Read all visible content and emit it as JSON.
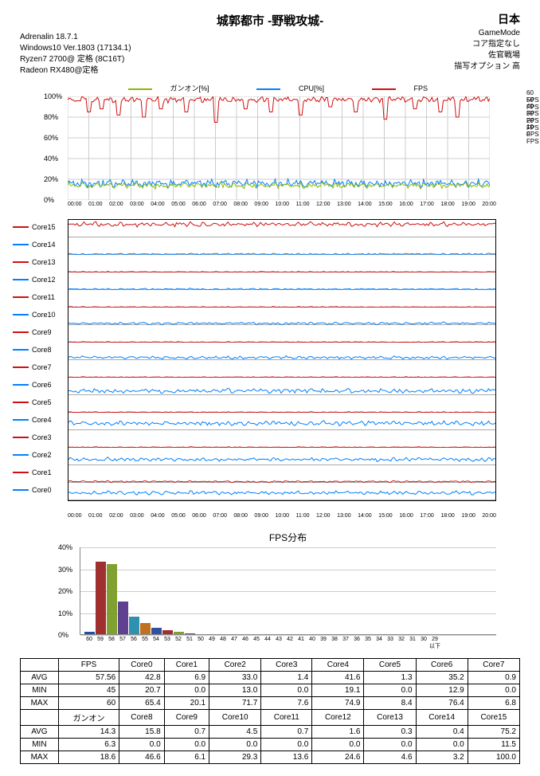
{
  "header": {
    "title": "城郭都市 -野戦攻城-",
    "region": "日本",
    "left_lines": [
      "Adrenalin  18.7.1",
      "Windows10  Ver.1803 (17134.1)",
      "        Ryzen7 2700@ 定格     (8C16T)",
      "Radeon RX480@定格"
    ],
    "right_lines": [
      "GameMode",
      "コア指定なし",
      "佐官戦場",
      "描写オプション 高"
    ]
  },
  "main_chart": {
    "legend": [
      {
        "label": "ガンオン[%]",
        "color": "#8ab800"
      },
      {
        "label": "CPU[%]",
        "color": "#0080ff"
      },
      {
        "label": "FPS",
        "color": "#d01010"
      }
    ],
    "y_left_ticks": [
      "100%",
      "80%",
      "60%",
      "40%",
      "20%",
      "0%"
    ],
    "y_right_ticks": [
      "60 FPS",
      "50 FPS",
      "40 FPS",
      "30 FPS",
      "20 FPS",
      "10 FPS",
      "0 FPS"
    ],
    "x_ticks": [
      "00:00",
      "01:00",
      "02:00",
      "03:00",
      "04:00",
      "05:00",
      "06:00",
      "07:00",
      "08:00",
      "09:00",
      "10:00",
      "11:00",
      "12:00",
      "13:00",
      "14:00",
      "15:00",
      "16:00",
      "17:00",
      "18:00",
      "19:00",
      "20:00"
    ],
    "height": 130,
    "border_color": "#000000",
    "grid_color": "#cccccc",
    "series": {
      "fps": {
        "color": "#d01010",
        "baseline": 97,
        "noise": 3,
        "dips": [
          [
            5,
            85
          ],
          [
            8,
            88
          ],
          [
            12,
            82
          ],
          [
            18,
            80
          ],
          [
            22,
            88
          ],
          [
            28,
            85
          ],
          [
            35,
            75
          ],
          [
            42,
            88
          ],
          [
            48,
            85
          ],
          [
            55,
            82
          ],
          [
            62,
            90
          ],
          [
            68,
            85
          ],
          [
            75,
            78
          ],
          [
            82,
            88
          ],
          [
            88,
            85
          ],
          [
            92,
            80
          ]
        ]
      },
      "cpu": {
        "color": "#0080ff",
        "baseline": 16,
        "noise": 4
      },
      "gunon": {
        "color": "#8ab800",
        "baseline": 14,
        "noise": 3
      }
    }
  },
  "cores": {
    "x_ticks": [
      "00:00",
      "01:00",
      "02:00",
      "03:00",
      "04:00",
      "05:00",
      "06:00",
      "07:00",
      "08:00",
      "09:00",
      "10:00",
      "11:00",
      "12:00",
      "13:00",
      "14:00",
      "15:00",
      "16:00",
      "17:00",
      "18:00",
      "19:00",
      "20:00"
    ],
    "list": [
      {
        "name": "Core15",
        "color": "#d01010",
        "baseline": 75,
        "noise": 15
      },
      {
        "name": "Core14",
        "color": "#0080ff",
        "baseline": 5,
        "noise": 5
      },
      {
        "name": "Core13",
        "color": "#d01010",
        "baseline": 3,
        "noise": 3
      },
      {
        "name": "Core12",
        "color": "#0080ff",
        "baseline": 5,
        "noise": 5
      },
      {
        "name": "Core11",
        "color": "#d01010",
        "baseline": 3,
        "noise": 3
      },
      {
        "name": "Core10",
        "color": "#0080ff",
        "baseline": 10,
        "noise": 8
      },
      {
        "name": "Core9",
        "color": "#d01010",
        "baseline": 3,
        "noise": 3
      },
      {
        "name": "Core8",
        "color": "#0080ff",
        "baseline": 15,
        "noise": 10
      },
      {
        "name": "Core7",
        "color": "#d01010",
        "baseline": 3,
        "noise": 3
      },
      {
        "name": "Core6",
        "color": "#0080ff",
        "baseline": 25,
        "noise": 15
      },
      {
        "name": "Core5",
        "color": "#d01010",
        "baseline": 3,
        "noise": 3
      },
      {
        "name": "Core4",
        "color": "#0080ff",
        "baseline": 40,
        "noise": 15
      },
      {
        "name": "Core3",
        "color": "#d01010",
        "baseline": 3,
        "noise": 3
      },
      {
        "name": "Core2",
        "color": "#0080ff",
        "baseline": 33,
        "noise": 12
      },
      {
        "name": "Core1",
        "color": "#d01010",
        "baseline": 7,
        "noise": 5
      },
      {
        "name": "Core0",
        "color": "#0080ff",
        "baseline": 43,
        "noise": 12
      }
    ]
  },
  "histogram": {
    "title": "FPS分布",
    "y_ticks": [
      "40%",
      "30%",
      "20%",
      "10%",
      "0%"
    ],
    "y_max": 40,
    "x_labels": [
      "60",
      "59",
      "58",
      "57",
      "56",
      "55",
      "54",
      "53",
      "52",
      "51",
      "50",
      "49",
      "48",
      "47",
      "46",
      "45",
      "44",
      "43",
      "42",
      "41",
      "40",
      "39",
      "38",
      "37",
      "36",
      "35",
      "34",
      "33",
      "32",
      "31",
      "30",
      "29以下"
    ],
    "bars": [
      {
        "v": 1,
        "c": "#2050a0"
      },
      {
        "v": 33,
        "c": "#a03030"
      },
      {
        "v": 32,
        "c": "#80a030"
      },
      {
        "v": 15,
        "c": "#604090"
      },
      {
        "v": 8,
        "c": "#3090b0"
      },
      {
        "v": 5,
        "c": "#c07020"
      },
      {
        "v": 3,
        "c": "#3050a0"
      },
      {
        "v": 2,
        "c": "#a03030"
      },
      {
        "v": 1,
        "c": "#80a030"
      },
      {
        "v": 0.5,
        "c": "#604090"
      }
    ]
  },
  "stats": {
    "headers1": [
      "",
      "FPS",
      "Core0",
      "Core1",
      "Core2",
      "Core3",
      "Core4",
      "Core5",
      "Core6",
      "Core7"
    ],
    "rows1": [
      [
        "AVG",
        "57.56",
        "42.8",
        "6.9",
        "33.0",
        "1.4",
        "41.6",
        "1.3",
        "35.2",
        "0.9"
      ],
      [
        "MIN",
        "45",
        "20.7",
        "0.0",
        "13.0",
        "0.0",
        "19.1",
        "0.0",
        "12.9",
        "0.0"
      ],
      [
        "MAX",
        "60",
        "65.4",
        "20.1",
        "71.7",
        "7.6",
        "74.9",
        "8.4",
        "76.4",
        "6.8"
      ]
    ],
    "headers2": [
      "",
      "ガンオン",
      "Core8",
      "Core9",
      "Core10",
      "Core11",
      "Core12",
      "Core13",
      "Core14",
      "Core15"
    ],
    "rows2": [
      [
        "AVG",
        "14.3",
        "15.8",
        "0.7",
        "4.5",
        "0.7",
        "1.6",
        "0.3",
        "0.4",
        "75.2"
      ],
      [
        "MIN",
        "6.3",
        "0.0",
        "0.0",
        "0.0",
        "0.0",
        "0.0",
        "0.0",
        "0.0",
        "11.5"
      ],
      [
        "MAX",
        "18.6",
        "46.6",
        "6.1",
        "29.3",
        "13.6",
        "24.6",
        "4.6",
        "3.2",
        "100.0"
      ]
    ]
  }
}
